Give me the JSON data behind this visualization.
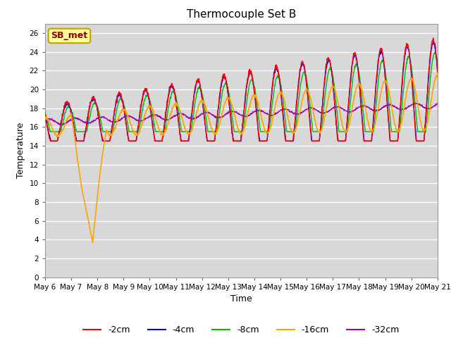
{
  "title": "Thermocouple Set B",
  "xlabel": "Time",
  "ylabel": "Temperature",
  "ylim": [
    0,
    27
  ],
  "yticks": [
    0,
    2,
    4,
    6,
    8,
    10,
    12,
    14,
    16,
    18,
    20,
    22,
    24,
    26
  ],
  "bg_color": "#d8d8d8",
  "fig_color": "#ffffff",
  "annotation_text": "SB_met",
  "annotation_color": "#8b0000",
  "annotation_bg": "#ffff99",
  "annotation_border": "#c8a000",
  "series_colors": {
    "-2cm": "#ff0000",
    "-4cm": "#0000ff",
    "-8cm": "#00bb00",
    "-16cm": "#ffa500",
    "-32cm": "#aa00aa"
  },
  "x_tick_labels": [
    "May 6",
    "May 7",
    "May 8",
    "May 9",
    "May 10",
    "May 11",
    "May 12",
    "May 13",
    "May 14",
    "May 15",
    "May 16",
    "May 17",
    "May 18",
    "May 19",
    "May 20",
    "May 21"
  ],
  "legend_labels": [
    "-2cm",
    "-4cm",
    "-8cm",
    "-16cm",
    "-32cm"
  ]
}
